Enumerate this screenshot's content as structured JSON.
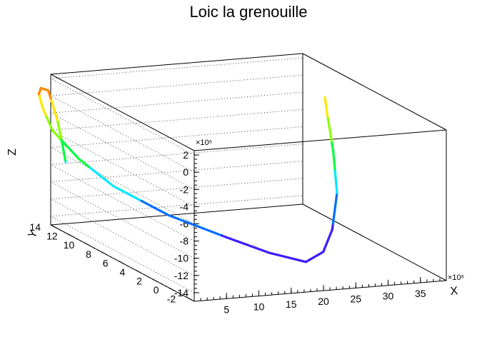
{
  "chart_data": {
    "type": "line3d",
    "title": "Loic la grenouille",
    "axes": {
      "x": {
        "label": "X",
        "exponent": "×10⁶",
        "ticks": [
          "5",
          "10",
          "15",
          "20",
          "25",
          "30",
          "35"
        ],
        "tick_values": [
          5,
          10,
          15,
          20,
          25,
          30,
          35
        ],
        "range": [
          0,
          39
        ]
      },
      "y": {
        "label": "Y",
        "ticks": [
          "-2",
          "0",
          "2",
          "4",
          "6",
          "8",
          "10",
          "12",
          "14"
        ],
        "tick_values": [
          -2,
          0,
          2,
          4,
          6,
          8,
          10,
          12,
          14
        ],
        "range": [
          -3,
          14
        ]
      },
      "z": {
        "label": "Z",
        "exponent": "×10⁶",
        "ticks": [
          "2",
          "0",
          "-2",
          "-4",
          "-6",
          "-8",
          "-10",
          "-12",
          "-14"
        ],
        "tick_values": [
          2,
          0,
          -2,
          -4,
          -6,
          -8,
          -10,
          -12,
          -14
        ],
        "range": [
          -15,
          2.5
        ]
      }
    },
    "grid": true,
    "palette": [
      "#ff1e00",
      "#ff8c00",
      "#ffe800",
      "#8cff00",
      "#00ff3c",
      "#00e8ff",
      "#0070ff",
      "#3c1eff",
      "#8c00ff"
    ],
    "series": [
      {
        "points": [
          {
            "x": 1.8,
            "y": 13.6,
            "z": -7.6
          },
          {
            "x": 1.6,
            "y": 13.9,
            "z": -5.4
          },
          {
            "x": 1.3,
            "y": 14.2,
            "z": -3.0
          },
          {
            "x": 1.0,
            "y": 14.6,
            "z": -1.2
          },
          {
            "x": 0.8,
            "y": 14.9,
            "z": 0.1
          },
          {
            "x": 0.2,
            "y": 15.3,
            "z": 0.2
          },
          {
            "x": 0.0,
            "y": 15.4,
            "z": -0.5
          },
          {
            "x": 0.3,
            "y": 15.2,
            "z": -2.0
          },
          {
            "x": 0.8,
            "y": 14.4,
            "z": -4.3
          },
          {
            "x": 2.4,
            "y": 12.5,
            "z": -6.7
          },
          {
            "x": 4.5,
            "y": 10.0,
            "z": -8.7
          },
          {
            "x": 8.5,
            "y": 6.5,
            "z": -10.5
          },
          {
            "x": 13.5,
            "y": 3.5,
            "z": -11.8
          },
          {
            "x": 17.5,
            "y": 1.5,
            "z": -12.8
          },
          {
            "x": 22.5,
            "y": 1.0,
            "z": -13.9
          },
          {
            "x": 26.5,
            "y": 2.0,
            "z": -13.5
          },
          {
            "x": 30.5,
            "y": 4.0,
            "z": -12.2
          },
          {
            "x": 34.5,
            "y": 6.5,
            "z": -9.5
          },
          {
            "x": 36.8,
            "y": 8.7,
            "z": -6.0
          },
          {
            "x": 38.5,
            "y": 10.8,
            "z": -2.3
          },
          {
            "x": 38.5,
            "y": 11.0,
            "z": -1.0
          }
        ],
        "color_by": "z"
      }
    ]
  }
}
